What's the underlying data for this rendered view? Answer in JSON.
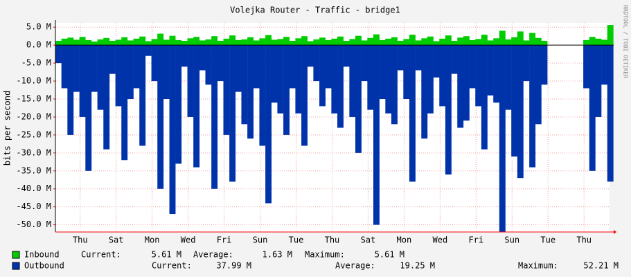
{
  "chart_data": {
    "type": "bar",
    "title": "Volejka Router - Traffic - bridge1",
    "y_label": "bits per second",
    "watermark": "RRDTOOL / TOBI OETIKER",
    "x": [
      0,
      8,
      16,
      24,
      32,
      40,
      48,
      56,
      64,
      72,
      80,
      88,
      96,
      104,
      112,
      120,
      128,
      136,
      144,
      152,
      160,
      168,
      176,
      184,
      192,
      200,
      208,
      216,
      224,
      232,
      240,
      248,
      256,
      264,
      272,
      280,
      288,
      296,
      304,
      312,
      320,
      328,
      336,
      344,
      352,
      360,
      368,
      376,
      384,
      392,
      400,
      408,
      416,
      424,
      432,
      440,
      448,
      456,
      464,
      472,
      480,
      488,
      496,
      504,
      512,
      520,
      528,
      536,
      544,
      552,
      560,
      568,
      576,
      584,
      592,
      600,
      608,
      616,
      624,
      632,
      640,
      648,
      656,
      664,
      672,
      680,
      688,
      696,
      704,
      712,
      720,
      728,
      736
    ],
    "xlim": [
      0,
      739
    ],
    "xticks": [
      {
        "value": 33,
        "label": "Thu"
      },
      {
        "value": 81,
        "label": "Sat"
      },
      {
        "value": 129,
        "label": "Mon"
      },
      {
        "value": 177,
        "label": "Wed"
      },
      {
        "value": 225,
        "label": "Fri"
      },
      {
        "value": 273,
        "label": "Sun"
      },
      {
        "value": 321,
        "label": "Tue"
      },
      {
        "value": 369,
        "label": "Thu"
      },
      {
        "value": 417,
        "label": "Sat"
      },
      {
        "value": 465,
        "label": "Mon"
      },
      {
        "value": 513,
        "label": "Wed"
      },
      {
        "value": 561,
        "label": "Fri"
      },
      {
        "value": 609,
        "label": "Sun"
      },
      {
        "value": 657,
        "label": "Tue"
      },
      {
        "value": 705,
        "label": "Thu"
      }
    ],
    "ylim": [
      -52,
      6.2
    ],
    "yticks": [
      {
        "value": 5,
        "label": "5.0 M"
      },
      {
        "value": 0,
        "label": "0.0 M"
      },
      {
        "value": -5,
        "label": "-5.0 M"
      },
      {
        "value": -10,
        "label": "-10.0 M"
      },
      {
        "value": -15,
        "label": "-15.0 M"
      },
      {
        "value": -20,
        "label": "-20.0 M"
      },
      {
        "value": -25,
        "label": "-25.0 M"
      },
      {
        "value": -30,
        "label": "-30.0 M"
      },
      {
        "value": -35,
        "label": "-35.0 M"
      },
      {
        "value": -40,
        "label": "-40.0 M"
      },
      {
        "value": -45,
        "label": "-45.0 M"
      },
      {
        "value": -50,
        "label": "-50.0 M"
      }
    ],
    "grid": true,
    "series": [
      {
        "name": "Inbound",
        "color": "#00cc00",
        "values": [
          1.2,
          1.8,
          2.1,
          1.5,
          2.3,
          1.4,
          1.0,
          1.6,
          2.0,
          1.2,
          1.5,
          2.2,
          1.3,
          1.8,
          2.4,
          1.1,
          1.7,
          3.2,
          1.5,
          2.6,
          1.4,
          1.2,
          1.9,
          2.3,
          1.3,
          1.6,
          2.5,
          1.2,
          1.8,
          2.7,
          1.4,
          1.6,
          2.2,
          1.3,
          1.9,
          2.8,
          1.5,
          1.7,
          2.3,
          1.2,
          1.9,
          2.5,
          1.1,
          1.6,
          2.1,
          1.4,
          1.8,
          2.4,
          1.2,
          1.7,
          2.6,
          1.3,
          2.0,
          3.0,
          1.4,
          1.8,
          2.2,
          1.2,
          1.7,
          2.9,
          1.3,
          1.9,
          2.4,
          1.1,
          1.8,
          2.7,
          1.2,
          2.1,
          2.5,
          1.4,
          1.7,
          2.9,
          1.3,
          1.9,
          4.0,
          1.6,
          2.2,
          3.8,
          1.3,
          3.4,
          2.0,
          1.2,
          null,
          null,
          null,
          null,
          null,
          null,
          1.4,
          2.3,
          1.8,
          1.5,
          5.61
        ]
      },
      {
        "name": "Outbound",
        "color": "#0033aa",
        "values": [
          -5,
          -12,
          -25,
          -13,
          -20,
          -35,
          -13,
          -18,
          -29,
          -8,
          -17,
          -32,
          -15,
          -12,
          -28,
          -3,
          -10,
          -40,
          -15,
          -47,
          -33,
          -6,
          -20,
          -34,
          -7,
          -11,
          -40,
          -10,
          -25,
          -38,
          -13,
          -22,
          -26,
          -12,
          -28,
          -44,
          -16,
          -19,
          -25,
          -12,
          -19,
          -28,
          -6,
          -10,
          -17,
          -12,
          -19,
          -23,
          -6,
          -20,
          -30,
          -10,
          -18,
          -50,
          -15,
          -19,
          -22,
          -7,
          -15,
          -38,
          -7,
          -26,
          -19,
          -9,
          -17,
          -36,
          -8,
          -23,
          -21,
          -12,
          -17,
          -29,
          -14,
          -16,
          -52,
          -18,
          -31,
          -37,
          -10,
          -34,
          -22,
          -11,
          null,
          null,
          null,
          null,
          null,
          null,
          -12,
          -35,
          -20,
          -11,
          -37.99
        ]
      }
    ],
    "legend": [
      {
        "name_ref": "Inbound",
        "current_label": "Current:",
        "current": "5.61 M",
        "average_label": "Average:",
        "average": "1.63 M",
        "maximum_label": "Maximum:",
        "maximum": "5.61 M"
      },
      {
        "name_ref": "Outbound",
        "current_label": "Current:",
        "current": "37.99 M",
        "average_label": "Average:",
        "average": "19.25 M",
        "maximum_label": "Maximum:",
        "maximum": "52.21 M"
      }
    ]
  }
}
